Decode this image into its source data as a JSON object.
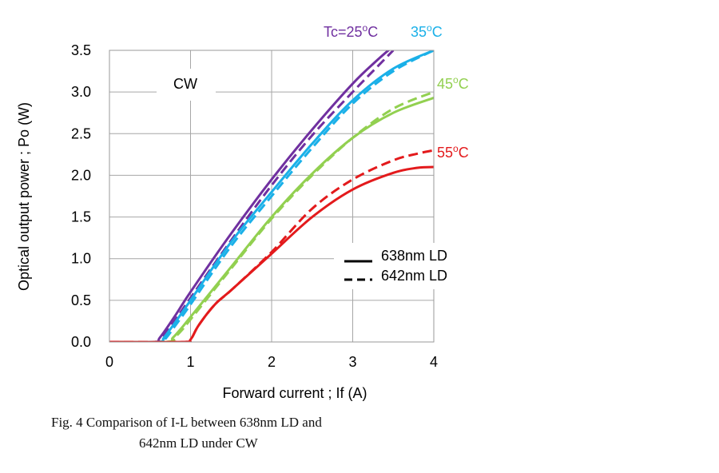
{
  "chart_data": {
    "type": "line",
    "xlabel": "Forward current ; If (A)",
    "ylabel": "Optical output power ;  Po (W)",
    "xlim": [
      0,
      4
    ],
    "ylim": [
      0,
      3.5
    ],
    "x_ticks": [
      0,
      1,
      2,
      3,
      4
    ],
    "x_tick_labels": [
      "0",
      "1",
      "2",
      "3",
      "4"
    ],
    "y_ticks": [
      0,
      0.5,
      1.0,
      1.5,
      2.0,
      2.5,
      3.0,
      3.5
    ],
    "y_tick_labels": [
      "0.0",
      "0.5",
      "1.0",
      "1.5",
      "2.0",
      "2.5",
      "3.0",
      "3.5"
    ],
    "grid": true,
    "annotation": "CW",
    "legend": [
      {
        "label": "638nm LD",
        "style": "solid"
      },
      {
        "label": "642nm LD",
        "style": "dashed"
      }
    ],
    "temperature_labels": [
      {
        "id": "t25",
        "prefix": "Tc=",
        "value": "25",
        "sup": "o",
        "unit": "C",
        "color": "#7030a0"
      },
      {
        "id": "t35",
        "prefix": "",
        "value": "35",
        "sup": "o",
        "unit": "C",
        "color": "#1ab0e8"
      },
      {
        "id": "t45",
        "prefix": "",
        "value": "45",
        "sup": "o",
        "unit": "C",
        "color": "#92d050"
      },
      {
        "id": "t55",
        "prefix": "",
        "value": "55",
        "sup": "o",
        "unit": "C",
        "color": "#e31a1c"
      }
    ],
    "series": [
      {
        "name": "638nm LD 25°C",
        "temp": "25",
        "style": "solid",
        "color": "#7030a0",
        "x": [
          0,
          0.55,
          0.62,
          0.8,
          1.0,
          1.5,
          2.0,
          2.5,
          3.0,
          3.3,
          3.5
        ],
        "y": [
          0,
          0,
          0.05,
          0.3,
          0.6,
          1.3,
          1.95,
          2.55,
          3.1,
          3.38,
          3.55
        ]
      },
      {
        "name": "642nm LD 25°C",
        "temp": "25",
        "style": "dashed",
        "color": "#7030a0",
        "x": [
          0,
          0.58,
          0.65,
          0.8,
          1.0,
          1.5,
          2.0,
          2.5,
          3.0,
          3.3,
          3.5
        ],
        "y": [
          0,
          0,
          0.05,
          0.25,
          0.53,
          1.22,
          1.88,
          2.48,
          3.0,
          3.3,
          3.5
        ]
      },
      {
        "name": "638nm LD 35°C",
        "temp": "35",
        "style": "solid",
        "color": "#1ab0e8",
        "x": [
          0,
          0.6,
          0.67,
          0.8,
          1.0,
          1.5,
          2.0,
          2.5,
          3.0,
          3.5,
          4.0
        ],
        "y": [
          0,
          0,
          0.05,
          0.22,
          0.5,
          1.2,
          1.8,
          2.38,
          2.9,
          3.28,
          3.5
        ]
      },
      {
        "name": "642nm LD 35°C",
        "temp": "35",
        "style": "dashed",
        "color": "#1ab0e8",
        "x": [
          0,
          0.62,
          0.7,
          0.8,
          1.0,
          1.5,
          2.0,
          2.5,
          3.0,
          3.5,
          4.0
        ],
        "y": [
          0,
          0,
          0.05,
          0.18,
          0.45,
          1.15,
          1.75,
          2.33,
          2.86,
          3.25,
          3.5
        ]
      },
      {
        "name": "638nm LD 45°C",
        "temp": "45",
        "style": "solid",
        "color": "#92d050",
        "x": [
          0,
          0.7,
          0.78,
          0.9,
          1.0,
          1.5,
          2.0,
          2.5,
          3.0,
          3.5,
          4.0
        ],
        "y": [
          0,
          0,
          0.05,
          0.18,
          0.3,
          0.9,
          1.5,
          2.02,
          2.45,
          2.75,
          2.93
        ]
      },
      {
        "name": "642nm LD 45°C",
        "temp": "45",
        "style": "dashed",
        "color": "#92d050",
        "x": [
          0,
          0.72,
          0.8,
          0.9,
          1.0,
          1.5,
          2.0,
          2.5,
          3.0,
          3.5,
          4.0
        ],
        "y": [
          0,
          0,
          0.05,
          0.15,
          0.27,
          0.88,
          1.48,
          2.0,
          2.45,
          2.8,
          3.0
        ]
      },
      {
        "name": "638nm LD 55°C",
        "temp": "55",
        "style": "solid",
        "color": "#e31a1c",
        "x": [
          0,
          0.9,
          1.0,
          1.1,
          1.3,
          1.5,
          2.0,
          2.5,
          3.0,
          3.5,
          3.8,
          4.0
        ],
        "y": [
          0,
          0,
          0.03,
          0.2,
          0.45,
          0.62,
          1.06,
          1.5,
          1.83,
          2.03,
          2.09,
          2.1
        ]
      },
      {
        "name": "642nm LD 55°C",
        "temp": "55",
        "style": "dashed",
        "color": "#e31a1c",
        "x": [
          0,
          0.9,
          1.0,
          1.1,
          1.3,
          1.5,
          2.0,
          2.5,
          3.0,
          3.5,
          3.8,
          4.0
        ],
        "y": [
          0,
          0,
          0.03,
          0.2,
          0.45,
          0.62,
          1.08,
          1.6,
          1.95,
          2.18,
          2.26,
          2.3
        ]
      }
    ]
  },
  "caption": {
    "line1": "Fig. 4 Comparison of I-L between 638nm LD and",
    "line2": "642nm LD under CW"
  }
}
